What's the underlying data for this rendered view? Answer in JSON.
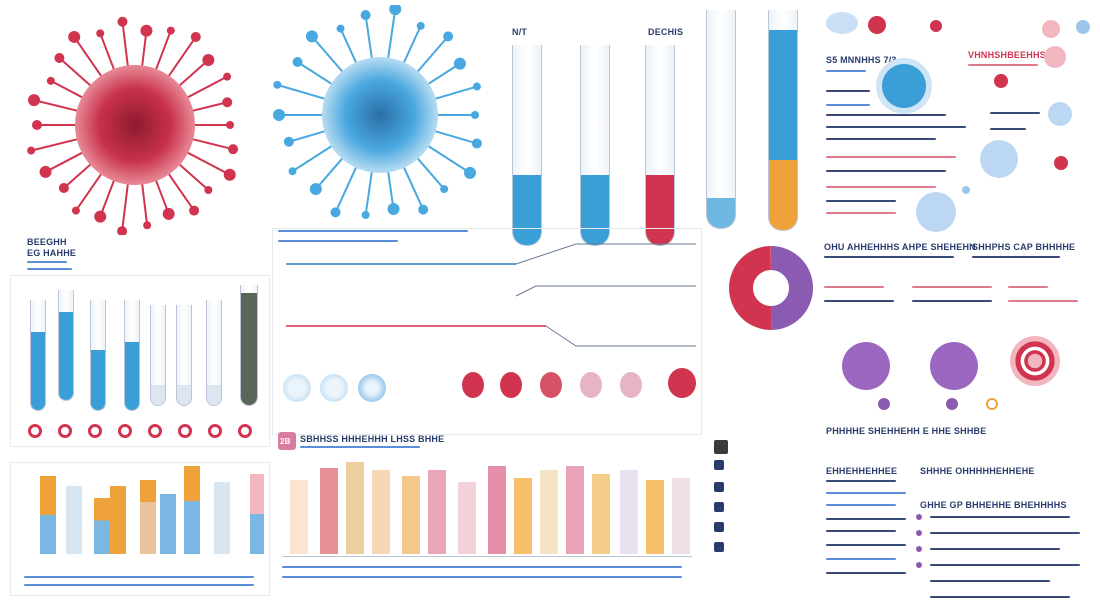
{
  "labels": {
    "tubes_header_left": "N/T",
    "tubes_header_right": "DECHIS",
    "virus_caption_1": "BEEGHH",
    "virus_caption_2": "EG HAHHE",
    "right_header": "S5 MNNHHS 7/3",
    "right_header_red": "VHNHSHBEEHHS",
    "donut_title": "OHU AHHEHHHS AHPE SHEHEHN",
    "right_title_2": "SHHPHS CAP BHHHHE",
    "mid_num": "2B",
    "mid_caption": "SBHHSS HHHEHHH LHSS BHHE",
    "stats_title": "EHHEHHEHHEE",
    "stats_title_2": "SHHHE OHHHHHEHHEHE",
    "stats_title_3": "GHHE GP BHHEHHE BHEHHHHS",
    "bottom_caption": "PHHHHE SHEHHEHH E HHE SHHBE"
  },
  "colors": {
    "red": "#d0344f",
    "blue": "#3a9fd6",
    "purple": "#8a5bb0",
    "orange": "#f0a23a",
    "navy": "#2a3c6e"
  },
  "icons": {
    "virus_red": "virus-icon",
    "virus_blue": "virus-icon",
    "virus_purple": "virus-icon"
  }
}
